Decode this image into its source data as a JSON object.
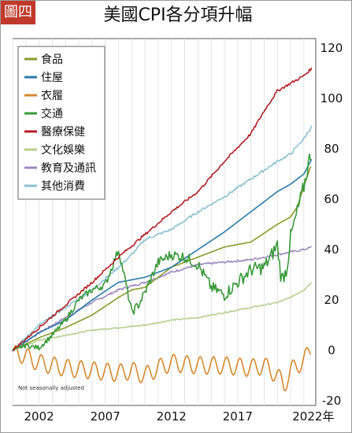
{
  "badge": "圖四",
  "chart_data": {
    "type": "line",
    "title": "美國CPI各分項升幅",
    "note": "Not seasonally adjusted",
    "xlim": [
      2000,
      2022.9
    ],
    "ylim": [
      -20,
      120
    ],
    "x_ticks": [
      2002,
      2007,
      2012,
      2017
    ],
    "x_last_tick": {
      "value": 2022,
      "label": "2022年"
    },
    "y_ticks": [
      -20,
      0,
      20,
      40,
      60,
      80,
      100,
      120
    ],
    "legend_position": "top-left",
    "grid": {
      "vertical": true,
      "horizontal": false
    },
    "series": [
      {
        "name": "食品",
        "color": "#8a9a2c",
        "style": "smooth",
        "points": [
          [
            2000,
            0
          ],
          [
            2002,
            5
          ],
          [
            2004,
            9
          ],
          [
            2006,
            14
          ],
          [
            2008,
            21
          ],
          [
            2009,
            24
          ],
          [
            2010,
            25
          ],
          [
            2011,
            29
          ],
          [
            2012,
            33
          ],
          [
            2014,
            37
          ],
          [
            2016,
            41
          ],
          [
            2018,
            43
          ],
          [
            2020,
            50
          ],
          [
            2021,
            53
          ],
          [
            2021.5,
            57
          ],
          [
            2022,
            65
          ],
          [
            2022.5,
            73
          ]
        ]
      },
      {
        "name": "住屋",
        "color": "#2b7ba6",
        "style": "smooth",
        "points": [
          [
            2000,
            0
          ],
          [
            2002,
            7
          ],
          [
            2004,
            12
          ],
          [
            2006,
            20
          ],
          [
            2008,
            27
          ],
          [
            2010,
            29
          ],
          [
            2012,
            33
          ],
          [
            2014,
            40
          ],
          [
            2016,
            47
          ],
          [
            2018,
            55
          ],
          [
            2020,
            63
          ],
          [
            2021,
            66
          ],
          [
            2022,
            70
          ],
          [
            2022.6,
            76
          ]
        ]
      },
      {
        "name": "衣履",
        "color": "#d48a2e",
        "style": "seasonal",
        "amp": 3.5,
        "points": [
          [
            2000,
            0
          ],
          [
            2002,
            -5
          ],
          [
            2004,
            -7
          ],
          [
            2006,
            -8
          ],
          [
            2008,
            -9
          ],
          [
            2009,
            -8
          ],
          [
            2010,
            -10
          ],
          [
            2011,
            -7
          ],
          [
            2012,
            -5
          ],
          [
            2014,
            -6
          ],
          [
            2016,
            -6
          ],
          [
            2018,
            -7
          ],
          [
            2019,
            -6
          ],
          [
            2020,
            -10
          ],
          [
            2020.5,
            -14
          ],
          [
            2021,
            -8
          ],
          [
            2022,
            -4
          ],
          [
            2022.5,
            0
          ]
        ]
      },
      {
        "name": "交通",
        "color": "#3a9a3a",
        "style": "volatile",
        "amp": 2.5,
        "points": [
          [
            2000,
            0
          ],
          [
            2001,
            2
          ],
          [
            2002,
            1
          ],
          [
            2003,
            6
          ],
          [
            2004,
            12
          ],
          [
            2005,
            20
          ],
          [
            2006,
            24
          ],
          [
            2007,
            26
          ],
          [
            2008,
            40
          ],
          [
            2008.5,
            28
          ],
          [
            2009,
            15
          ],
          [
            2009.5,
            18
          ],
          [
            2010,
            23
          ],
          [
            2011,
            35
          ],
          [
            2012,
            38
          ],
          [
            2013,
            37
          ],
          [
            2014,
            34
          ],
          [
            2015,
            25
          ],
          [
            2016,
            22
          ],
          [
            2017,
            27
          ],
          [
            2018,
            32
          ],
          [
            2019,
            33
          ],
          [
            2019.5,
            37
          ],
          [
            2020,
            42
          ],
          [
            2020.3,
            28
          ],
          [
            2020.7,
            32
          ],
          [
            2021,
            45
          ],
          [
            2021.5,
            55
          ],
          [
            2022,
            65
          ],
          [
            2022.5,
            78
          ]
        ]
      },
      {
        "name": "醫療保健",
        "color": "#b21f24",
        "style": "smooth",
        "jitter": 1,
        "points": [
          [
            2000,
            0
          ],
          [
            2002,
            9
          ],
          [
            2004,
            18
          ],
          [
            2006,
            27
          ],
          [
            2008,
            37
          ],
          [
            2010,
            46
          ],
          [
            2012,
            55
          ],
          [
            2014,
            63
          ],
          [
            2016,
            75
          ],
          [
            2018,
            86
          ],
          [
            2019,
            95
          ],
          [
            2020,
            103
          ],
          [
            2021,
            106
          ],
          [
            2022,
            109
          ],
          [
            2022.6,
            112
          ]
        ]
      },
      {
        "name": "文化娛樂",
        "color": "#b7cf8f",
        "style": "smooth",
        "jitter": 0.5,
        "points": [
          [
            2000,
            0
          ],
          [
            2002,
            4
          ],
          [
            2004,
            6
          ],
          [
            2006,
            8
          ],
          [
            2008,
            9
          ],
          [
            2010,
            10
          ],
          [
            2012,
            12
          ],
          [
            2014,
            13
          ],
          [
            2016,
            15
          ],
          [
            2018,
            17
          ],
          [
            2020,
            19
          ],
          [
            2021,
            21
          ],
          [
            2022,
            24
          ],
          [
            2022.6,
            27
          ]
        ]
      },
      {
        "name": "教育及通訊",
        "color": "#9c8ac0",
        "style": "smooth",
        "jitter": 0.8,
        "points": [
          [
            2000,
            0
          ],
          [
            2002,
            7
          ],
          [
            2004,
            13
          ],
          [
            2006,
            19
          ],
          [
            2008,
            24
          ],
          [
            2010,
            27
          ],
          [
            2012,
            31
          ],
          [
            2014,
            34
          ],
          [
            2016,
            35
          ],
          [
            2018,
            36
          ],
          [
            2020,
            38
          ],
          [
            2021,
            39
          ],
          [
            2022,
            40
          ],
          [
            2022.6,
            41
          ]
        ]
      },
      {
        "name": "其他消費",
        "color": "#8cc2d2",
        "style": "smooth",
        "jitter": 1,
        "points": [
          [
            2000,
            0
          ],
          [
            2002,
            10
          ],
          [
            2004,
            17
          ],
          [
            2006,
            24
          ],
          [
            2008,
            33
          ],
          [
            2009,
            38
          ],
          [
            2010,
            44
          ],
          [
            2012,
            48
          ],
          [
            2014,
            55
          ],
          [
            2016,
            61
          ],
          [
            2018,
            68
          ],
          [
            2020,
            75
          ],
          [
            2021,
            78
          ],
          [
            2022,
            84
          ],
          [
            2022.6,
            89
          ]
        ]
      }
    ]
  }
}
